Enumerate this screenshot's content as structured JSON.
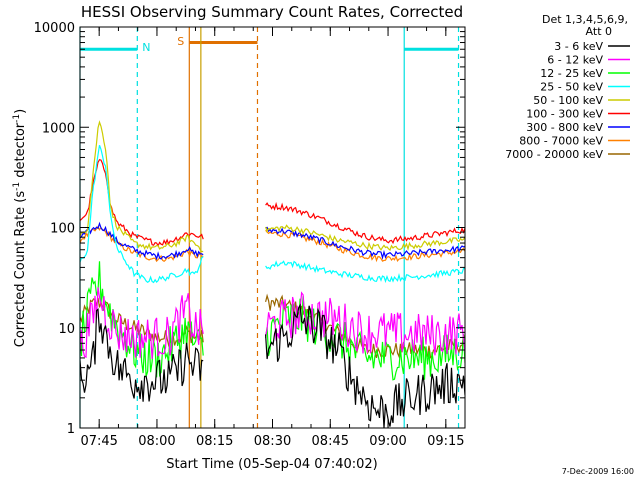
{
  "chart_data": {
    "type": "line",
    "title": "HESSI Observing Summary Count Rates, Corrected",
    "xlabel": "Start Time (05-Sep-04 07:40:02)",
    "ylabel": "Corrected Count Rate (s",
    "ylabel_sup1": "-1",
    "ylabel_mid": " detector",
    "ylabel_sup2": "-1",
    "ylabel_end": ")",
    "yscale": "log",
    "ylim": [
      1,
      10000
    ],
    "xlim": [
      7.667,
      9.333
    ],
    "xticks": [
      {
        "t": 7.75,
        "label": "07:45"
      },
      {
        "t": 8.0,
        "label": "08:00"
      },
      {
        "t": 8.25,
        "label": "08:15"
      },
      {
        "t": 8.5,
        "label": "08:30"
      },
      {
        "t": 8.75,
        "label": "08:45"
      },
      {
        "t": 9.0,
        "label": "09:00"
      },
      {
        "t": 9.25,
        "label": "09:15"
      }
    ],
    "yticks": [
      {
        "v": 1,
        "label": "1"
      },
      {
        "v": 10,
        "label": "10"
      },
      {
        "v": 100,
        "label": "100"
      },
      {
        "v": 1000,
        "label": "1000"
      },
      {
        "v": 10000,
        "label": "10000"
      }
    ],
    "legend_title": [
      "Det 1,3,4,5,6,9,",
      "Att 0"
    ],
    "legend_placement": "right",
    "footer_date": "7-Dec-2009 16:00",
    "segments": [
      [
        7.667,
        8.2
      ],
      [
        8.47,
        9.333
      ]
    ],
    "series": [
      {
        "name": "3 - 6 keV",
        "color": "#000000",
        "points": [
          [
            7.667,
            3
          ],
          [
            7.72,
            4
          ],
          [
            7.75,
            15
          ],
          [
            7.78,
            8
          ],
          [
            7.83,
            4
          ],
          [
            7.9,
            3
          ],
          [
            7.95,
            3
          ],
          [
            8.0,
            3
          ],
          [
            8.05,
            3
          ],
          [
            8.1,
            4
          ],
          [
            8.13,
            5
          ],
          [
            8.16,
            4
          ],
          [
            8.2,
            4
          ],
          [
            8.47,
            6
          ],
          [
            8.55,
            8
          ],
          [
            8.62,
            12
          ],
          [
            8.7,
            10
          ],
          [
            8.78,
            6
          ],
          [
            8.85,
            3
          ],
          [
            8.9,
            2
          ],
          [
            8.95,
            1.5
          ],
          [
            9.0,
            1.5
          ],
          [
            9.1,
            2
          ],
          [
            9.2,
            2.5
          ],
          [
            9.333,
            3
          ]
        ]
      },
      {
        "name": "6 - 12 keV",
        "color": "#ff00ff",
        "points": [
          [
            7.667,
            6
          ],
          [
            7.72,
            12
          ],
          [
            7.75,
            22
          ],
          [
            7.78,
            14
          ],
          [
            7.83,
            9
          ],
          [
            7.9,
            8
          ],
          [
            7.95,
            8
          ],
          [
            8.0,
            8
          ],
          [
            8.05,
            8
          ],
          [
            8.1,
            12
          ],
          [
            8.13,
            15
          ],
          [
            8.16,
            10
          ],
          [
            8.2,
            9
          ],
          [
            8.47,
            10
          ],
          [
            8.55,
            12
          ],
          [
            8.62,
            14
          ],
          [
            8.7,
            13
          ],
          [
            8.78,
            12
          ],
          [
            8.85,
            10
          ],
          [
            8.9,
            9
          ],
          [
            8.95,
            9
          ],
          [
            9.0,
            9
          ],
          [
            9.1,
            8.5
          ],
          [
            9.2,
            8.5
          ],
          [
            9.333,
            9
          ]
        ]
      },
      {
        "name": "12 - 25 keV",
        "color": "#00ff00",
        "points": [
          [
            7.667,
            7
          ],
          [
            7.72,
            20
          ],
          [
            7.75,
            30
          ],
          [
            7.78,
            18
          ],
          [
            7.83,
            10
          ],
          [
            7.9,
            6
          ],
          [
            7.95,
            5
          ],
          [
            8.0,
            5
          ],
          [
            8.05,
            6
          ],
          [
            8.1,
            8
          ],
          [
            8.13,
            10
          ],
          [
            8.16,
            7
          ],
          [
            8.2,
            6
          ],
          [
            8.47,
            8
          ],
          [
            8.55,
            12
          ],
          [
            8.62,
            13
          ],
          [
            8.7,
            10
          ],
          [
            8.78,
            8
          ],
          [
            8.85,
            6
          ],
          [
            8.9,
            5
          ],
          [
            8.95,
            5
          ],
          [
            9.0,
            5
          ],
          [
            9.1,
            5
          ],
          [
            9.2,
            5
          ],
          [
            9.333,
            6
          ]
        ]
      },
      {
        "name": "25 - 50 keV",
        "color": "#00ffff",
        "points": [
          [
            7.667,
            45
          ],
          [
            7.7,
            60
          ],
          [
            7.72,
            200
          ],
          [
            7.75,
            650
          ],
          [
            7.78,
            400
          ],
          [
            7.8,
            120
          ],
          [
            7.83,
            60
          ],
          [
            7.9,
            35
          ],
          [
            7.95,
            30
          ],
          [
            8.0,
            30
          ],
          [
            8.05,
            32
          ],
          [
            8.1,
            35
          ],
          [
            8.13,
            38
          ],
          [
            8.16,
            33
          ],
          [
            8.2,
            50
          ],
          [
            8.47,
            40
          ],
          [
            8.55,
            45
          ],
          [
            8.62,
            42
          ],
          [
            8.7,
            38
          ],
          [
            8.78,
            35
          ],
          [
            8.85,
            33
          ],
          [
            8.9,
            32
          ],
          [
            8.95,
            31
          ],
          [
            9.0,
            31
          ],
          [
            9.1,
            32
          ],
          [
            9.2,
            34
          ],
          [
            9.333,
            37
          ]
        ]
      },
      {
        "name": "50 - 100 keV",
        "color": "#cccc00",
        "points": [
          [
            7.667,
            80
          ],
          [
            7.7,
            100
          ],
          [
            7.72,
            300
          ],
          [
            7.75,
            1200
          ],
          [
            7.78,
            600
          ],
          [
            7.8,
            150
          ],
          [
            7.83,
            100
          ],
          [
            7.9,
            70
          ],
          [
            7.95,
            65
          ],
          [
            8.0,
            62
          ],
          [
            8.05,
            65
          ],
          [
            8.1,
            72
          ],
          [
            8.13,
            80
          ],
          [
            8.16,
            70
          ],
          [
            8.2,
            60
          ],
          [
            8.47,
            95
          ],
          [
            8.55,
            100
          ],
          [
            8.62,
            95
          ],
          [
            8.7,
            85
          ],
          [
            8.78,
            75
          ],
          [
            8.85,
            70
          ],
          [
            8.9,
            66
          ],
          [
            8.95,
            64
          ],
          [
            9.0,
            62
          ],
          [
            9.1,
            66
          ],
          [
            9.2,
            70
          ],
          [
            9.333,
            76
          ]
        ]
      },
      {
        "name": "100 - 300 keV",
        "color": "#ff0000",
        "points": [
          [
            7.667,
            120
          ],
          [
            7.7,
            140
          ],
          [
            7.72,
            250
          ],
          [
            7.75,
            480
          ],
          [
            7.78,
            350
          ],
          [
            7.8,
            160
          ],
          [
            7.83,
            110
          ],
          [
            7.9,
            82
          ],
          [
            7.95,
            75
          ],
          [
            8.0,
            70
          ],
          [
            8.05,
            72
          ],
          [
            8.1,
            80
          ],
          [
            8.13,
            88
          ],
          [
            8.16,
            85
          ],
          [
            8.2,
            80
          ],
          [
            8.47,
            165
          ],
          [
            8.55,
            160
          ],
          [
            8.62,
            145
          ],
          [
            8.7,
            125
          ],
          [
            8.78,
            105
          ],
          [
            8.85,
            90
          ],
          [
            8.9,
            82
          ],
          [
            8.95,
            77
          ],
          [
            9.0,
            74
          ],
          [
            9.1,
            78
          ],
          [
            9.2,
            85
          ],
          [
            9.333,
            95
          ]
        ]
      },
      {
        "name": "300 - 800 keV",
        "color": "#0000ff",
        "points": [
          [
            7.667,
            80
          ],
          [
            7.7,
            90
          ],
          [
            7.72,
            95
          ],
          [
            7.75,
            105
          ],
          [
            7.78,
            95
          ],
          [
            7.8,
            85
          ],
          [
            7.83,
            72
          ],
          [
            7.9,
            60
          ],
          [
            7.95,
            55
          ],
          [
            8.0,
            52
          ],
          [
            8.05,
            52
          ],
          [
            8.1,
            56
          ],
          [
            8.13,
            62
          ],
          [
            8.16,
            55
          ],
          [
            8.2,
            55
          ],
          [
            8.47,
            95
          ],
          [
            8.55,
            92
          ],
          [
            8.62,
            85
          ],
          [
            8.7,
            76
          ],
          [
            8.78,
            66
          ],
          [
            8.85,
            60
          ],
          [
            8.9,
            56
          ],
          [
            8.95,
            54
          ],
          [
            9.0,
            53
          ],
          [
            9.1,
            55
          ],
          [
            9.2,
            58
          ],
          [
            9.333,
            62
          ]
        ]
      },
      {
        "name": "800 - 7000 keV",
        "color": "#ff8000",
        "points": [
          [
            7.667,
            75
          ],
          [
            7.7,
            85
          ],
          [
            7.72,
            90
          ],
          [
            7.75,
            98
          ],
          [
            7.78,
            90
          ],
          [
            7.8,
            80
          ],
          [
            7.83,
            68
          ],
          [
            7.9,
            56
          ],
          [
            7.95,
            51
          ],
          [
            8.0,
            49
          ],
          [
            8.05,
            49
          ],
          [
            8.1,
            53
          ],
          [
            8.13,
            58
          ],
          [
            8.16,
            52
          ],
          [
            8.2,
            52
          ],
          [
            8.47,
            88
          ],
          [
            8.55,
            86
          ],
          [
            8.62,
            80
          ],
          [
            8.7,
            72
          ],
          [
            8.78,
            62
          ],
          [
            8.85,
            56
          ],
          [
            8.9,
            52
          ],
          [
            8.95,
            50
          ],
          [
            9.0,
            49
          ],
          [
            9.1,
            51
          ],
          [
            9.2,
            54
          ],
          [
            9.333,
            58
          ]
        ]
      },
      {
        "name": "7000 - 20000 keV",
        "color": "#996600",
        "points": [
          [
            7.667,
            12
          ],
          [
            7.7,
            15
          ],
          [
            7.72,
            17
          ],
          [
            7.75,
            18
          ],
          [
            7.78,
            16
          ],
          [
            7.8,
            14
          ],
          [
            7.83,
            12
          ],
          [
            7.9,
            10
          ],
          [
            7.95,
            9
          ],
          [
            8.0,
            8
          ],
          [
            8.05,
            8
          ],
          [
            8.1,
            8
          ],
          [
            8.13,
            9
          ],
          [
            8.16,
            8
          ],
          [
            8.2,
            8
          ],
          [
            8.47,
            18
          ],
          [
            8.55,
            17
          ],
          [
            8.62,
            15
          ],
          [
            8.7,
            12
          ],
          [
            8.78,
            9
          ],
          [
            8.85,
            7
          ],
          [
            8.9,
            6
          ],
          [
            8.95,
            6
          ],
          [
            9.0,
            6
          ],
          [
            9.1,
            6
          ],
          [
            9.2,
            6
          ],
          [
            9.333,
            7
          ]
        ]
      }
    ],
    "flags": [
      {
        "label": "N",
        "color": "#00e0e0",
        "bar": [
          7.667,
          7.915
        ],
        "bar_y": 6000,
        "vlines": [
          {
            "t": 7.667,
            "style": "solid"
          },
          {
            "t": 7.915,
            "style": "dashed"
          }
        ]
      },
      {
        "label": "S",
        "color": "#e07000",
        "bar": [
          8.14,
          8.435
        ],
        "bar_y": 7000,
        "vlines": [
          {
            "t": 8.14,
            "style": "solid"
          },
          {
            "t": 8.435,
            "style": "dashed"
          }
        ]
      },
      {
        "label": "",
        "color": "#c8a000",
        "bar": null,
        "bar_y": null,
        "vlines": [
          {
            "t": 8.19,
            "style": "solid"
          }
        ]
      },
      {
        "label": "",
        "color": "#00e0e0",
        "bar": [
          9.07,
          9.305
        ],
        "bar_y": 6000,
        "vlines": [
          {
            "t": 9.07,
            "style": "solid"
          },
          {
            "t": 9.305,
            "style": "dashed"
          }
        ]
      }
    ]
  }
}
